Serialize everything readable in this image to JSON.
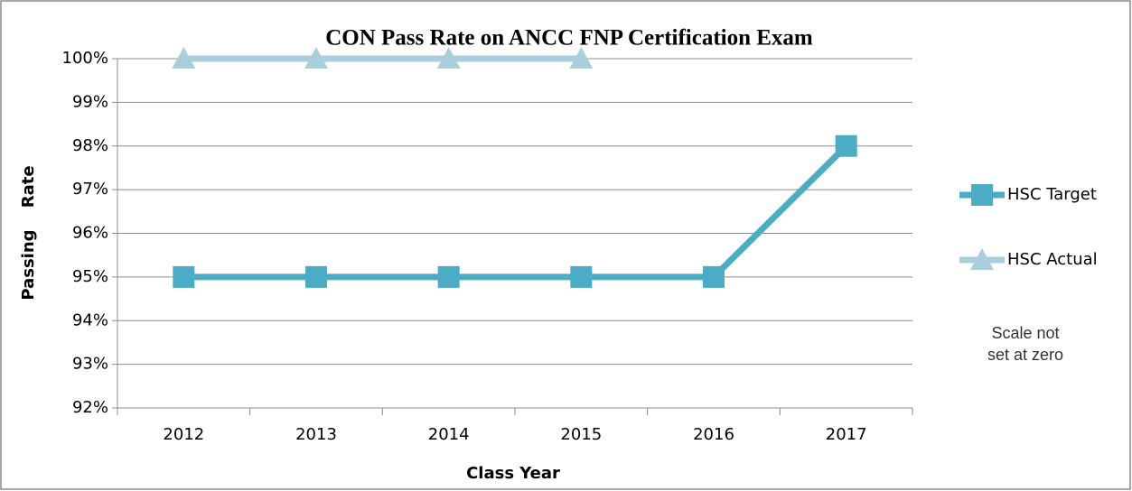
{
  "chart_data": {
    "type": "line",
    "title": "CON Pass Rate on ANCC FNP Certification Exam",
    "x_label": "Class Year",
    "y_label": "Passing Rate",
    "categories": [
      "2012",
      "2013",
      "2014",
      "2015",
      "2016",
      "2017"
    ],
    "series": [
      {
        "name": "HSC Target",
        "color": "#4bacc6",
        "marker": "square",
        "values": [
          95,
          95,
          95,
          95,
          95,
          98
        ]
      },
      {
        "name": "HSC Actual",
        "color": "#a9cfdd",
        "marker": "triangle",
        "values": [
          100,
          100,
          100,
          100,
          null,
          null
        ]
      }
    ],
    "ylim": [
      92,
      100
    ],
    "yticks": [
      {
        "value": 92,
        "label": "92%"
      },
      {
        "value": 93,
        "label": "93%"
      },
      {
        "value": 94,
        "label": "94%"
      },
      {
        "value": 95,
        "label": "95%"
      },
      {
        "value": 96,
        "label": "96%"
      },
      {
        "value": 97,
        "label": "97%"
      },
      {
        "value": 98,
        "label": "98%"
      },
      {
        "value": 99,
        "label": "99%"
      },
      {
        "value": 100,
        "label": "100%"
      }
    ],
    "grid": true,
    "legend": "right",
    "annotation": [
      "Scale not",
      "set at zero"
    ]
  }
}
